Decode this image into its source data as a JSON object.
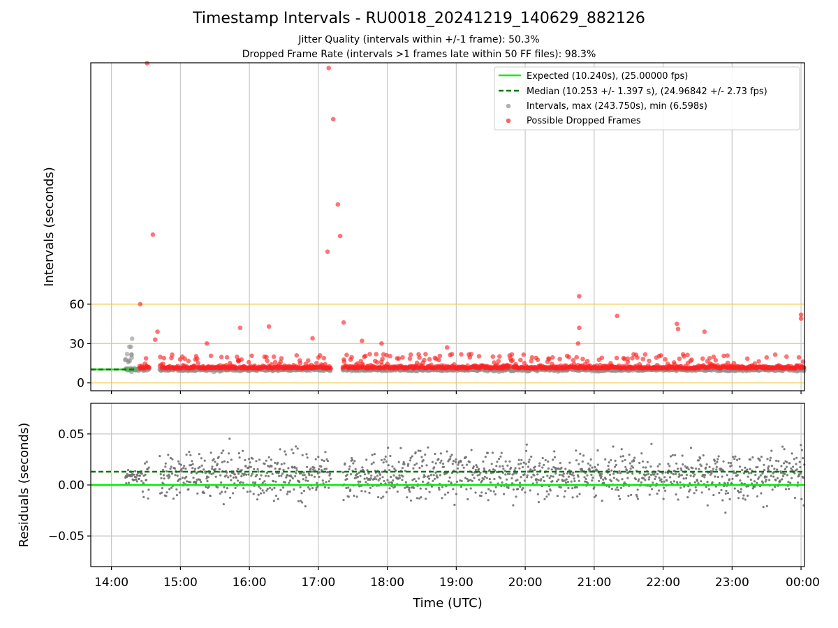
{
  "chart_data": [
    {
      "type": "scatter",
      "title": "Timestamp Intervals - RU0018_20241219_140629_882126",
      "subtitle_lines": [
        "Jitter Quality (intervals within +/-1 frame): 50.3%",
        "Dropped Frame Rate (intervals >1 frames late within 50 FF files): 98.3%"
      ],
      "xlabel": "",
      "ylabel": "Intervals (seconds)",
      "x_domain_hours": [
        13.7,
        24.05
      ],
      "ylim": [
        -6,
        244
      ],
      "yticks": [
        0,
        30,
        60
      ],
      "reference_lines": [
        0,
        30,
        60
      ],
      "expected": 10.24,
      "median": 10.253,
      "legend_position": "upper right",
      "legend": [
        {
          "label": "Expected (10.240s), (25.00000 fps)",
          "style": "solid",
          "color": "#00ee00"
        },
        {
          "label": "Median (10.253 +/- 1.397 s), (24.96842 +/- 2.73 fps)",
          "style": "dashed",
          "color": "#007700"
        },
        {
          "label": "Intervals, max (243.750s), min (6.598s)",
          "style": "dot",
          "color": "#909090"
        },
        {
          "label": "Possible Dropped Frames",
          "style": "dot",
          "color": "#ff2020"
        }
      ],
      "intervals_range": [
        6.598,
        243.75
      ],
      "dropped_frame_outliers": [
        {
          "t": "14:31",
          "y": 243.75
        },
        {
          "t": "14:36",
          "y": 113
        },
        {
          "t": "14:25",
          "y": 60
        },
        {
          "t": "14:38",
          "y": 33
        },
        {
          "t": "14:40",
          "y": 39
        },
        {
          "t": "15:23",
          "y": 30
        },
        {
          "t": "15:52",
          "y": 42
        },
        {
          "t": "16:17",
          "y": 43
        },
        {
          "t": "16:55",
          "y": 34
        },
        {
          "t": "17:08",
          "y": 100
        },
        {
          "t": "17:09",
          "y": 240
        },
        {
          "t": "17:13",
          "y": 201
        },
        {
          "t": "17:17",
          "y": 136
        },
        {
          "t": "17:19",
          "y": 112
        },
        {
          "t": "17:22",
          "y": 46
        },
        {
          "t": "17:38",
          "y": 32
        },
        {
          "t": "17:55",
          "y": 30
        },
        {
          "t": "18:52",
          "y": 27
        },
        {
          "t": "20:47",
          "y": 66
        },
        {
          "t": "20:47",
          "y": 42
        },
        {
          "t": "20:46",
          "y": 30
        },
        {
          "t": "21:20",
          "y": 51
        },
        {
          "t": "22:12",
          "y": 45
        },
        {
          "t": "22:13",
          "y": 41
        },
        {
          "t": "22:36",
          "y": 39
        },
        {
          "t": "24:00",
          "y": 52
        },
        {
          "t": "24:00",
          "y": 49
        }
      ]
    },
    {
      "type": "scatter",
      "xlabel": "Time (UTC)",
      "ylabel": "Residuals (seconds)",
      "ylim": [
        -0.08,
        0.08
      ],
      "yticks": [
        0.05,
        0.0,
        -0.05
      ],
      "ytick_labels": [
        "0.05",
        "0.00",
        "−0.05"
      ],
      "expected_residual": 0.0,
      "median_residual": 0.013,
      "grid": true,
      "xticks": [
        "14:00",
        "15:00",
        "16:00",
        "17:00",
        "18:00",
        "19:00",
        "20:00",
        "21:00",
        "22:00",
        "23:00",
        "00:00"
      ]
    }
  ]
}
